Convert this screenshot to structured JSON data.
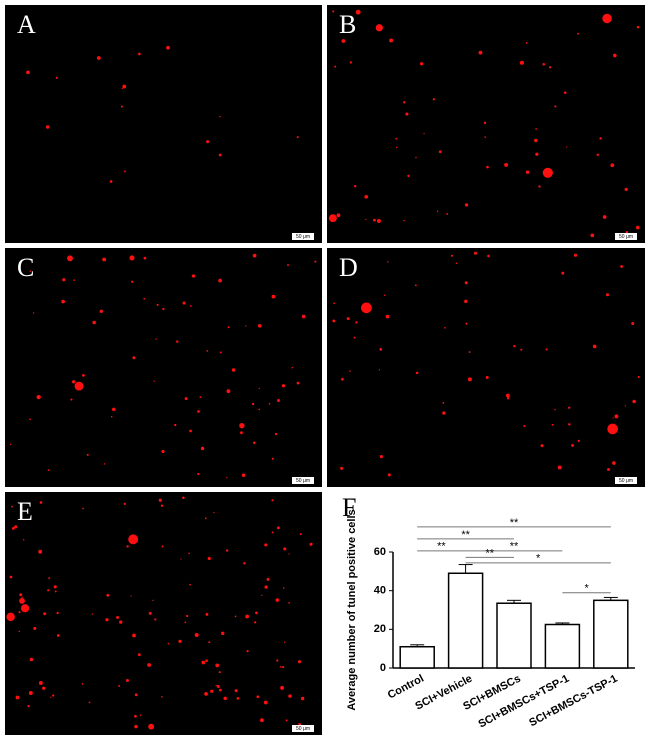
{
  "panels": [
    {
      "label": "A"
    },
    {
      "label": "B"
    },
    {
      "label": "C"
    },
    {
      "label": "D"
    },
    {
      "label": "E"
    }
  ],
  "scale_bar": "50 μm",
  "chart_data": {
    "type": "bar",
    "title": "F",
    "y_label": "Average number of tunel positive cells",
    "categories": [
      "Control",
      "SCI+Vehicle",
      "SCI+BMSCs",
      "SCI+BMSCs+TSP-1",
      "SCI+BMSCs-TSP-1"
    ],
    "values": [
      11,
      49,
      33.5,
      22.5,
      35
    ],
    "errors": [
      1,
      4.5,
      1.5,
      0.8,
      1.5
    ],
    "color": "#ffffff",
    "ylim": [
      0,
      60
    ],
    "yticks": [
      0,
      20,
      40,
      60
    ],
    "comparisons": [
      {
        "from": 0,
        "to": 4,
        "y": 73,
        "label": "**"
      },
      {
        "from": 0,
        "to": 2,
        "y": 66.8,
        "label": "**"
      },
      {
        "from": 0,
        "to": 1,
        "y": 60.6,
        "label": "**"
      },
      {
        "from": 1,
        "to": 3,
        "y": 60.6,
        "label": "**"
      },
      {
        "from": 1,
        "to": 2,
        "y": 57.2,
        "label": "**"
      },
      {
        "from": 1,
        "to": 4,
        "y": 54.4,
        "label": "*"
      },
      {
        "from": 3,
        "to": 4,
        "y": 38.9,
        "label": "*"
      }
    ]
  }
}
